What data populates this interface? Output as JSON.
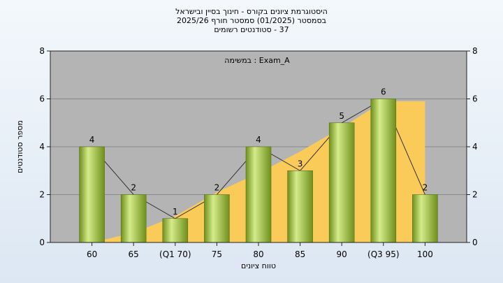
{
  "header": {
    "line1": "היסטוגרמת ציונים בקורס - חינוך בסיין ובישראל",
    "line2": "בסמסטר  (01/2025)  סמסטר חורף 2025/26",
    "line3": "37 - סטודנטים רשומים"
  },
  "colors": {
    "plot_bg": "#b4b4b4",
    "area_fill": "#ffcc55",
    "bar_light": "#d4ec8a",
    "bar_dark": "#6f8f1c"
  },
  "chart_data": {
    "type": "bar",
    "annotation": "Exam_A : במשימה",
    "categories": [
      "60",
      "65",
      "(Q1 70)",
      "75",
      "80",
      "85",
      "90",
      "(Q3 95)",
      "100"
    ],
    "values": [
      4,
      2,
      1,
      2,
      4,
      3,
      5,
      6,
      2
    ],
    "cumulative_area": [
      0,
      0.4,
      1.1,
      2.1,
      2.9,
      3.8,
      4.8,
      5.9,
      5.9
    ],
    "xlabel": "טווח ציונים",
    "ylabel": "מספר סטודנטים",
    "yticks": [
      0,
      2,
      4,
      6,
      8
    ],
    "ylim": [
      0,
      8
    ],
    "grid": true
  }
}
